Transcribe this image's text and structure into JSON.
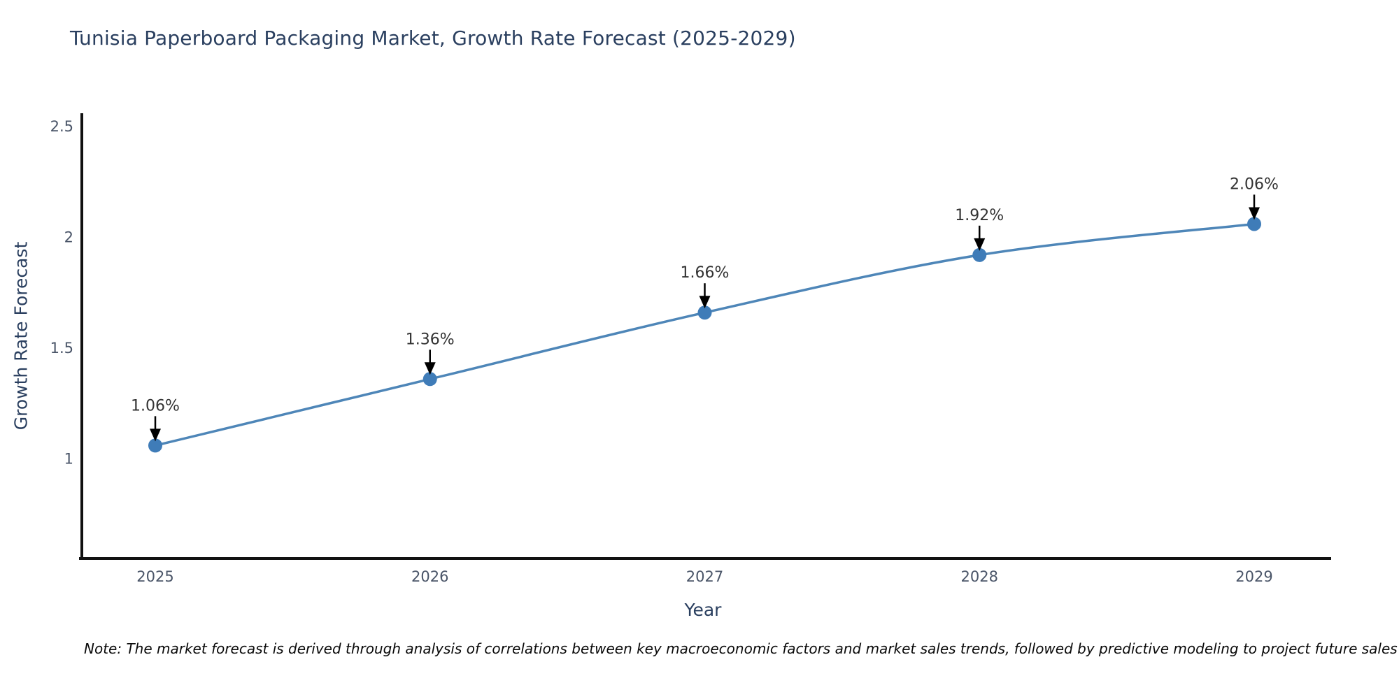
{
  "title": "Tunisia Paperboard Packaging Market, Growth Rate Forecast (2025-2029)",
  "note": "Note: The market forecast is derived through analysis of correlations between key macroeconomic factors and market sales trends, followed by predictive modeling to project future sales",
  "chart_data": {
    "type": "line",
    "title": "Tunisia Paperboard Packaging Market, Growth Rate Forecast (2025-2029)",
    "xlabel": "Year",
    "ylabel": "Growth Rate Forecast",
    "x": [
      2025,
      2026,
      2027,
      2028,
      2029
    ],
    "series": [
      {
        "name": "Growth Rate Forecast",
        "values": [
          1.06,
          1.36,
          1.66,
          1.92,
          2.06
        ]
      }
    ],
    "point_labels": [
      "1.06%",
      "1.36%",
      "1.66%",
      "1.92%",
      "2.06%"
    ],
    "y_ticks": [
      1,
      1.5,
      2,
      2.5
    ],
    "ylim": [
      0.55,
      2.56
    ],
    "grid": false,
    "legend": "none",
    "line_shape": "spline",
    "annotation_style": "label-with-down-arrow",
    "colors": {
      "line": "#4e86b8",
      "marker": "#3f7cb8",
      "arrow": "#000000",
      "axis_spine": "#111111",
      "title_text": "#2a3f5f",
      "tick_text": "#4a5568",
      "label_text": "#333333"
    }
  }
}
